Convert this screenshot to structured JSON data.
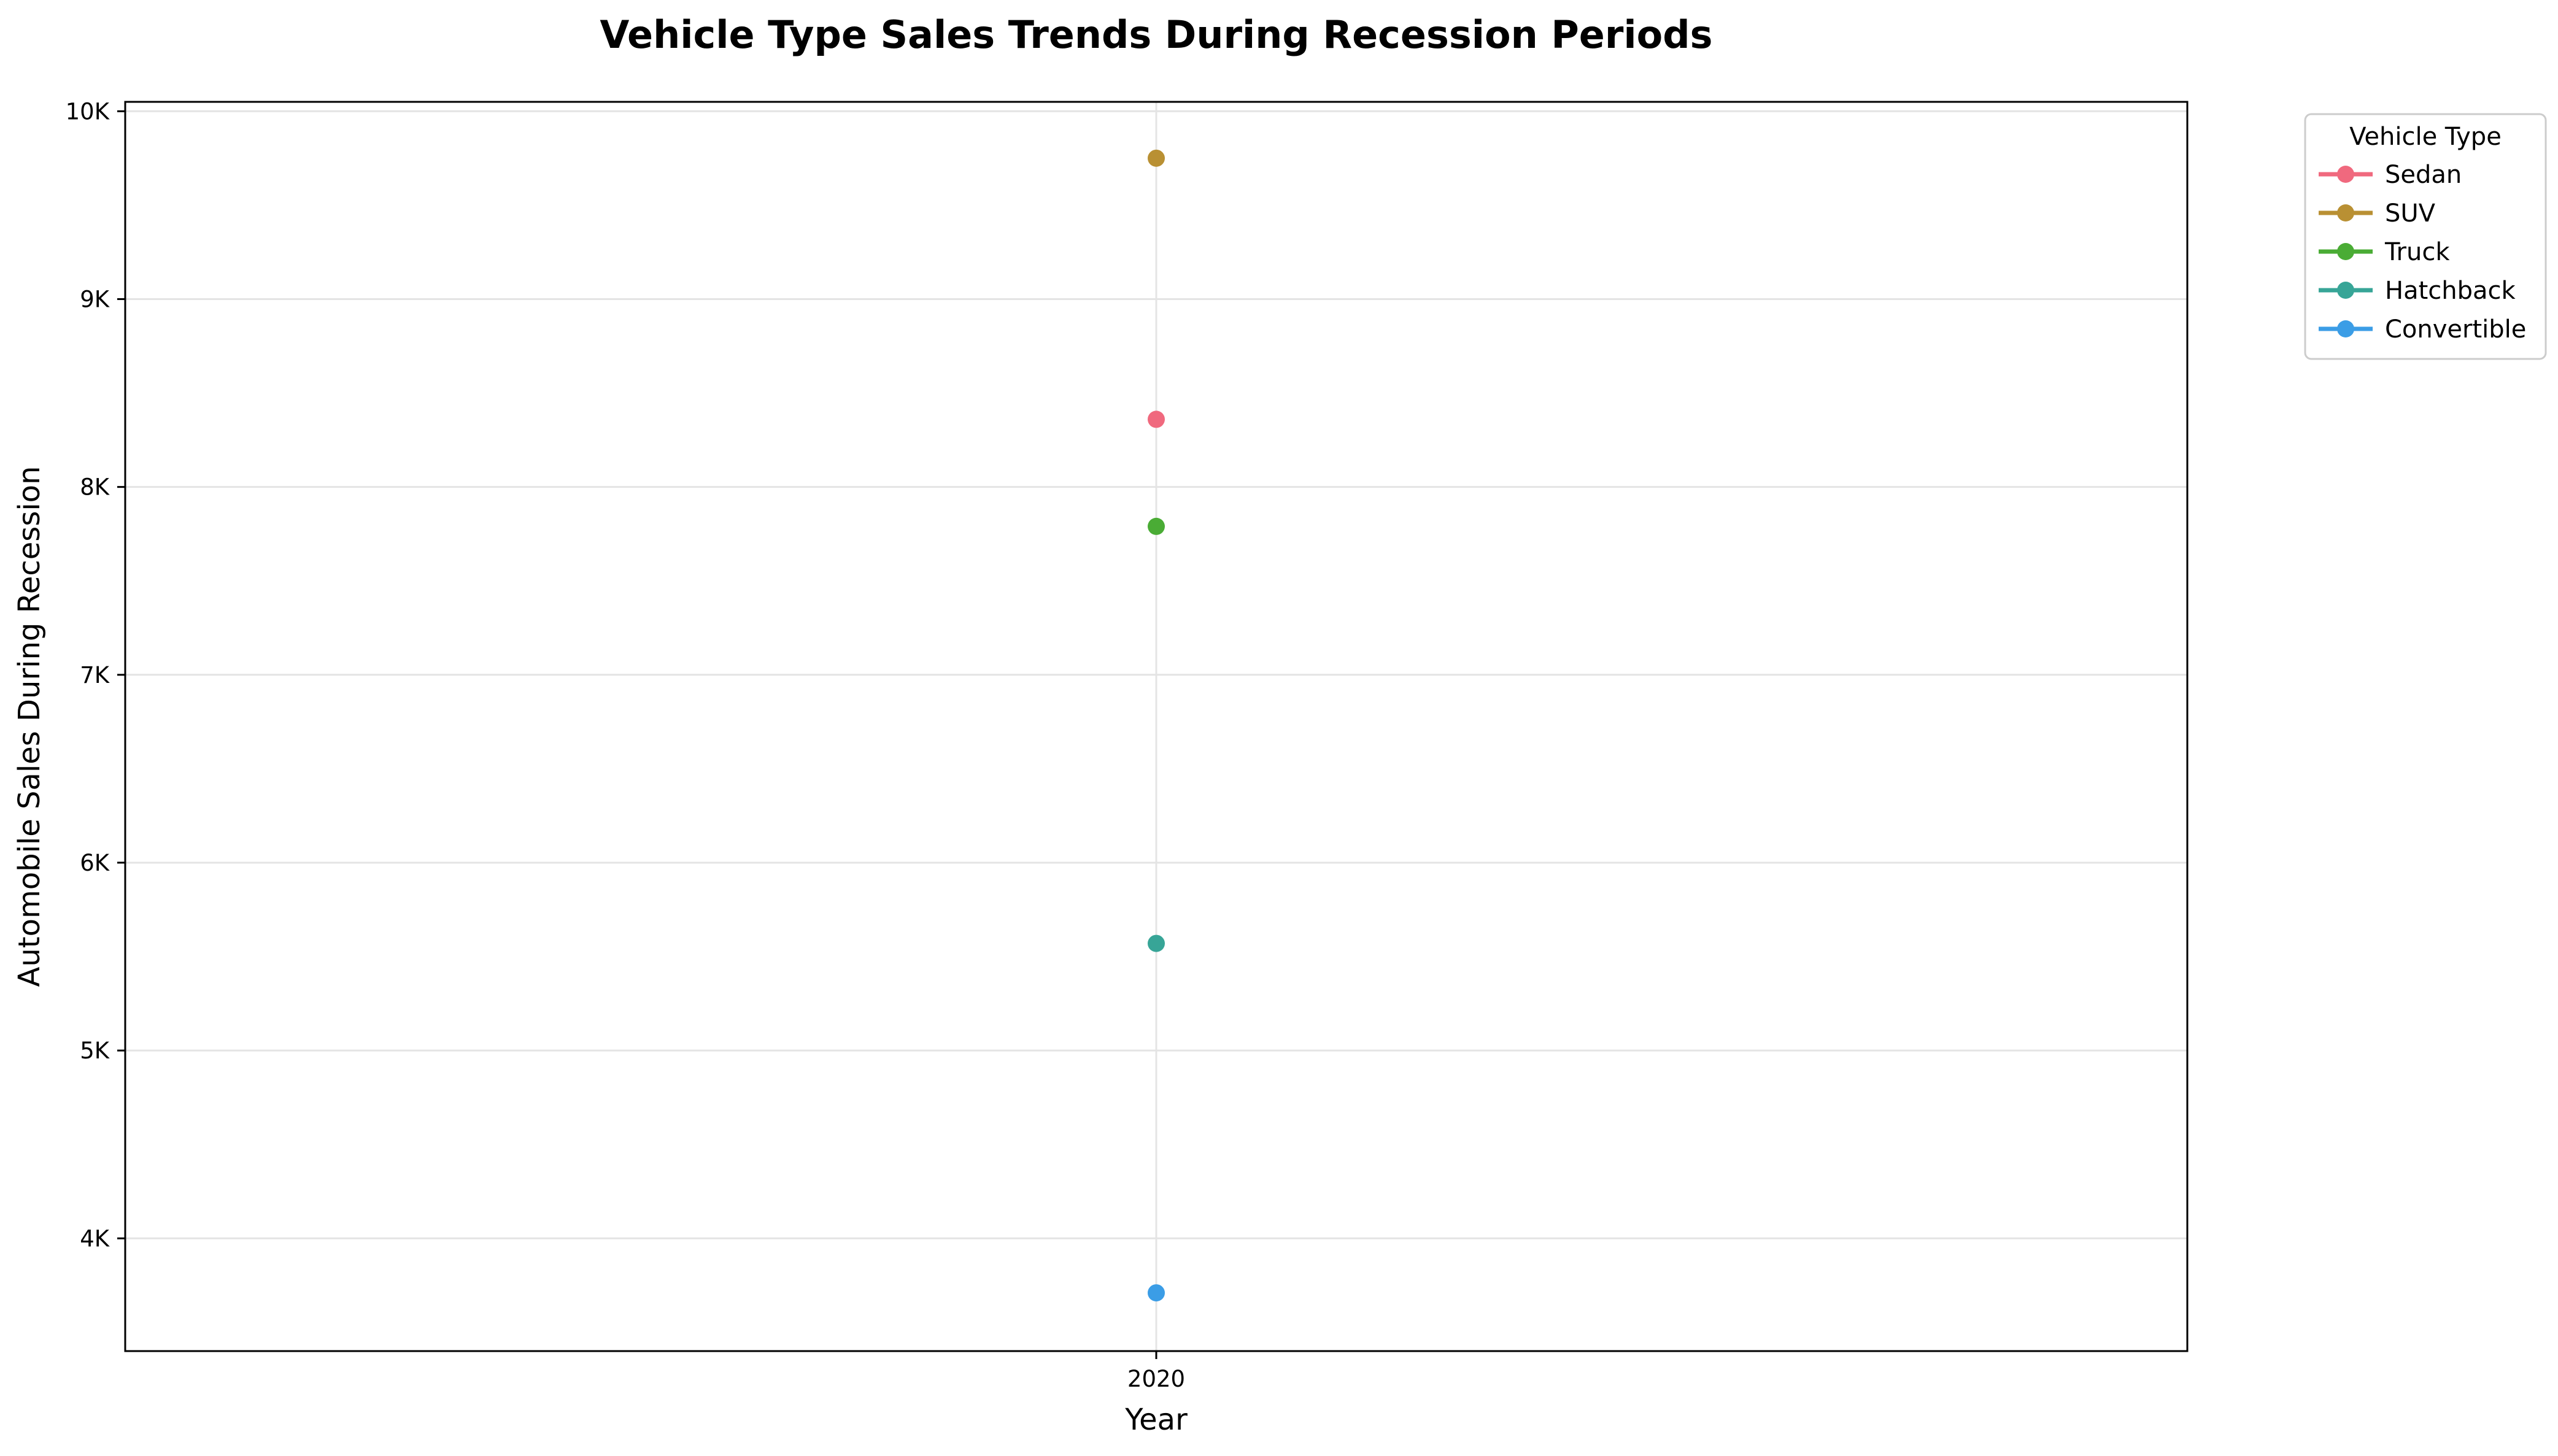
{
  "chart_data": {
    "type": "line",
    "title": "Vehicle Type Sales Trends During Recession Periods",
    "xlabel": "Year",
    "ylabel": "Automobile Sales During Recession",
    "x": [
      2020
    ],
    "x_tick_labels": [
      "2020"
    ],
    "ylim": [
      3400,
      10050
    ],
    "y_ticks": [
      4000,
      5000,
      6000,
      7000,
      8000,
      9000,
      10000
    ],
    "y_tick_labels": [
      "4K",
      "5K",
      "6K",
      "7K",
      "8K",
      "9K",
      "10K"
    ],
    "grid": true,
    "legend": {
      "title": "Vehicle Type",
      "placement": "outside-top-right"
    },
    "series": [
      {
        "name": "Sedan",
        "color": "#f0697e",
        "values": [
          8360
        ]
      },
      {
        "name": "SUV",
        "color": "#b99033",
        "values": [
          9750
        ]
      },
      {
        "name": "Truck",
        "color": "#4aac35",
        "values": [
          7790
        ]
      },
      {
        "name": "Hatchback",
        "color": "#37a597",
        "values": [
          5570
        ]
      },
      {
        "name": "Convertible",
        "color": "#3b9de6",
        "values": [
          3710
        ]
      }
    ]
  }
}
